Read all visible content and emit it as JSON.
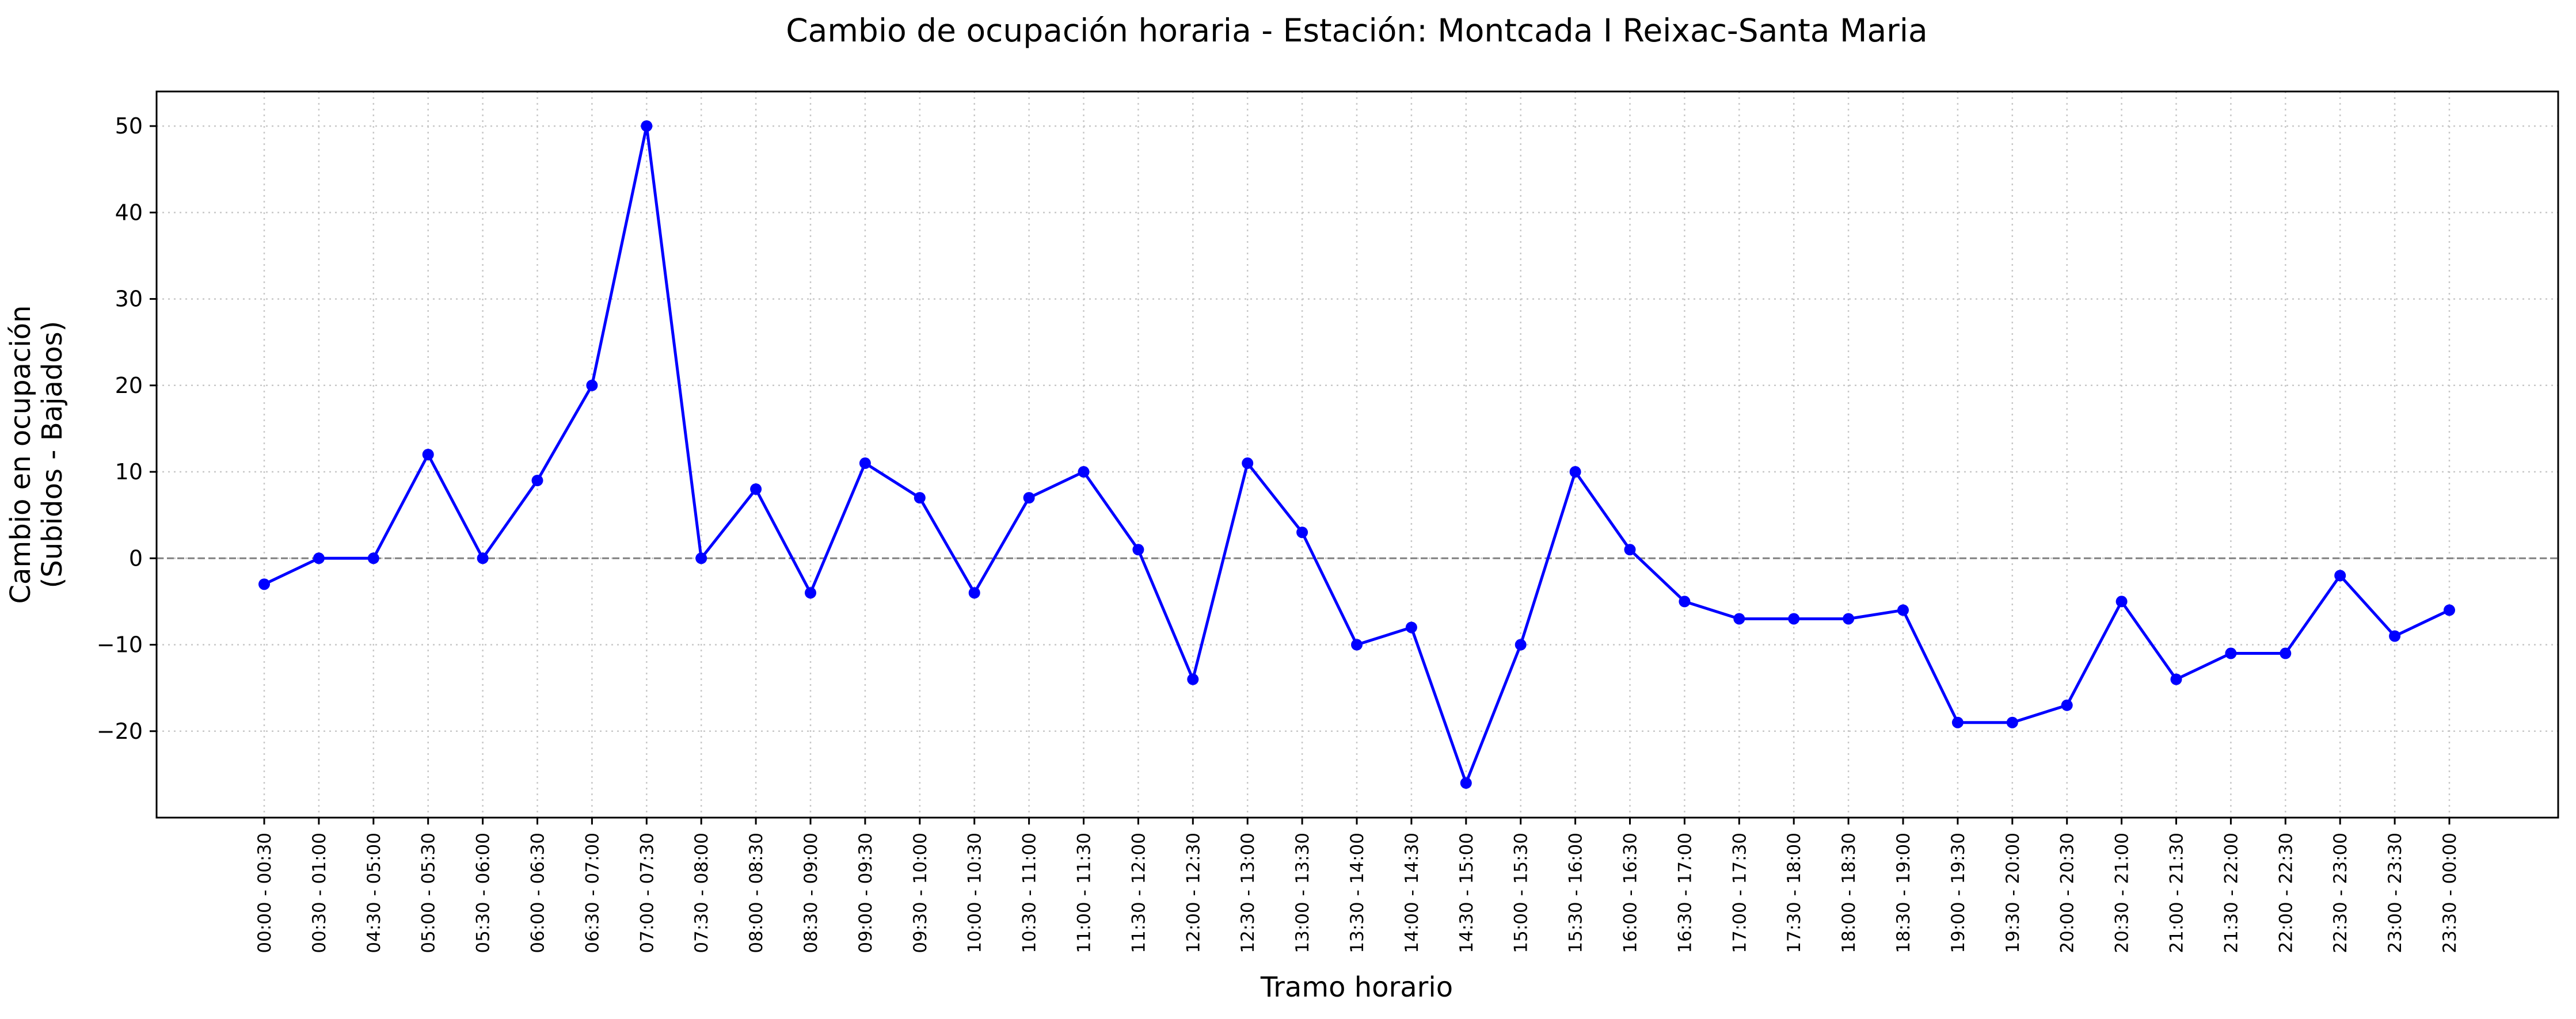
{
  "chart_data": {
    "type": "line",
    "title": "Cambio de ocupación horaria - Estación: Montcada I Reixac-Santa Maria",
    "xlabel": "Tramo horario",
    "ylabel_line1": "Cambio en ocupación",
    "ylabel_line2": "(Subidos - Bajados)",
    "ylim": [
      -30,
      54
    ],
    "yticks": [
      -20,
      -10,
      0,
      10,
      20,
      30,
      40,
      50
    ],
    "ytick_labels": [
      "−20",
      "−10",
      "0",
      "10",
      "20",
      "30",
      "40",
      "50"
    ],
    "grid": true,
    "reference_line": 0,
    "categories": [
      "00:00 - 00:30",
      "00:30 - 01:00",
      "04:30 - 05:00",
      "05:00 - 05:30",
      "05:30 - 06:00",
      "06:00 - 06:30",
      "06:30 - 07:00",
      "07:00 - 07:30",
      "07:30 - 08:00",
      "08:00 - 08:30",
      "08:30 - 09:00",
      "09:00 - 09:30",
      "09:30 - 10:00",
      "10:00 - 10:30",
      "10:30 - 11:00",
      "11:00 - 11:30",
      "11:30 - 12:00",
      "12:00 - 12:30",
      "12:30 - 13:00",
      "13:00 - 13:30",
      "13:30 - 14:00",
      "14:00 - 14:30",
      "14:30 - 15:00",
      "15:00 - 15:30",
      "15:30 - 16:00",
      "16:00 - 16:30",
      "16:30 - 17:00",
      "17:00 - 17:30",
      "17:30 - 18:00",
      "18:00 - 18:30",
      "18:30 - 19:00",
      "19:00 - 19:30",
      "19:30 - 20:00",
      "20:00 - 20:30",
      "20:30 - 21:00",
      "21:00 - 21:30",
      "21:30 - 22:00",
      "22:00 - 22:30",
      "22:30 - 23:00",
      "23:00 - 23:30",
      "23:30 - 00:00"
    ],
    "values": [
      -3,
      0,
      0,
      12,
      0,
      9,
      20,
      50,
      0,
      8,
      -4,
      11,
      7,
      -4,
      7,
      10,
      1,
      -14,
      11,
      3,
      -10,
      -8,
      -26,
      -10,
      10,
      1,
      -5,
      -7,
      -7,
      -7,
      -6,
      -19,
      -19,
      -17,
      -5,
      -14,
      -11,
      -11,
      -2,
      -9,
      -6
    ],
    "colors": {
      "line": "#0000ff",
      "grid": "#c8c8c8",
      "reference": "#808080"
    }
  }
}
